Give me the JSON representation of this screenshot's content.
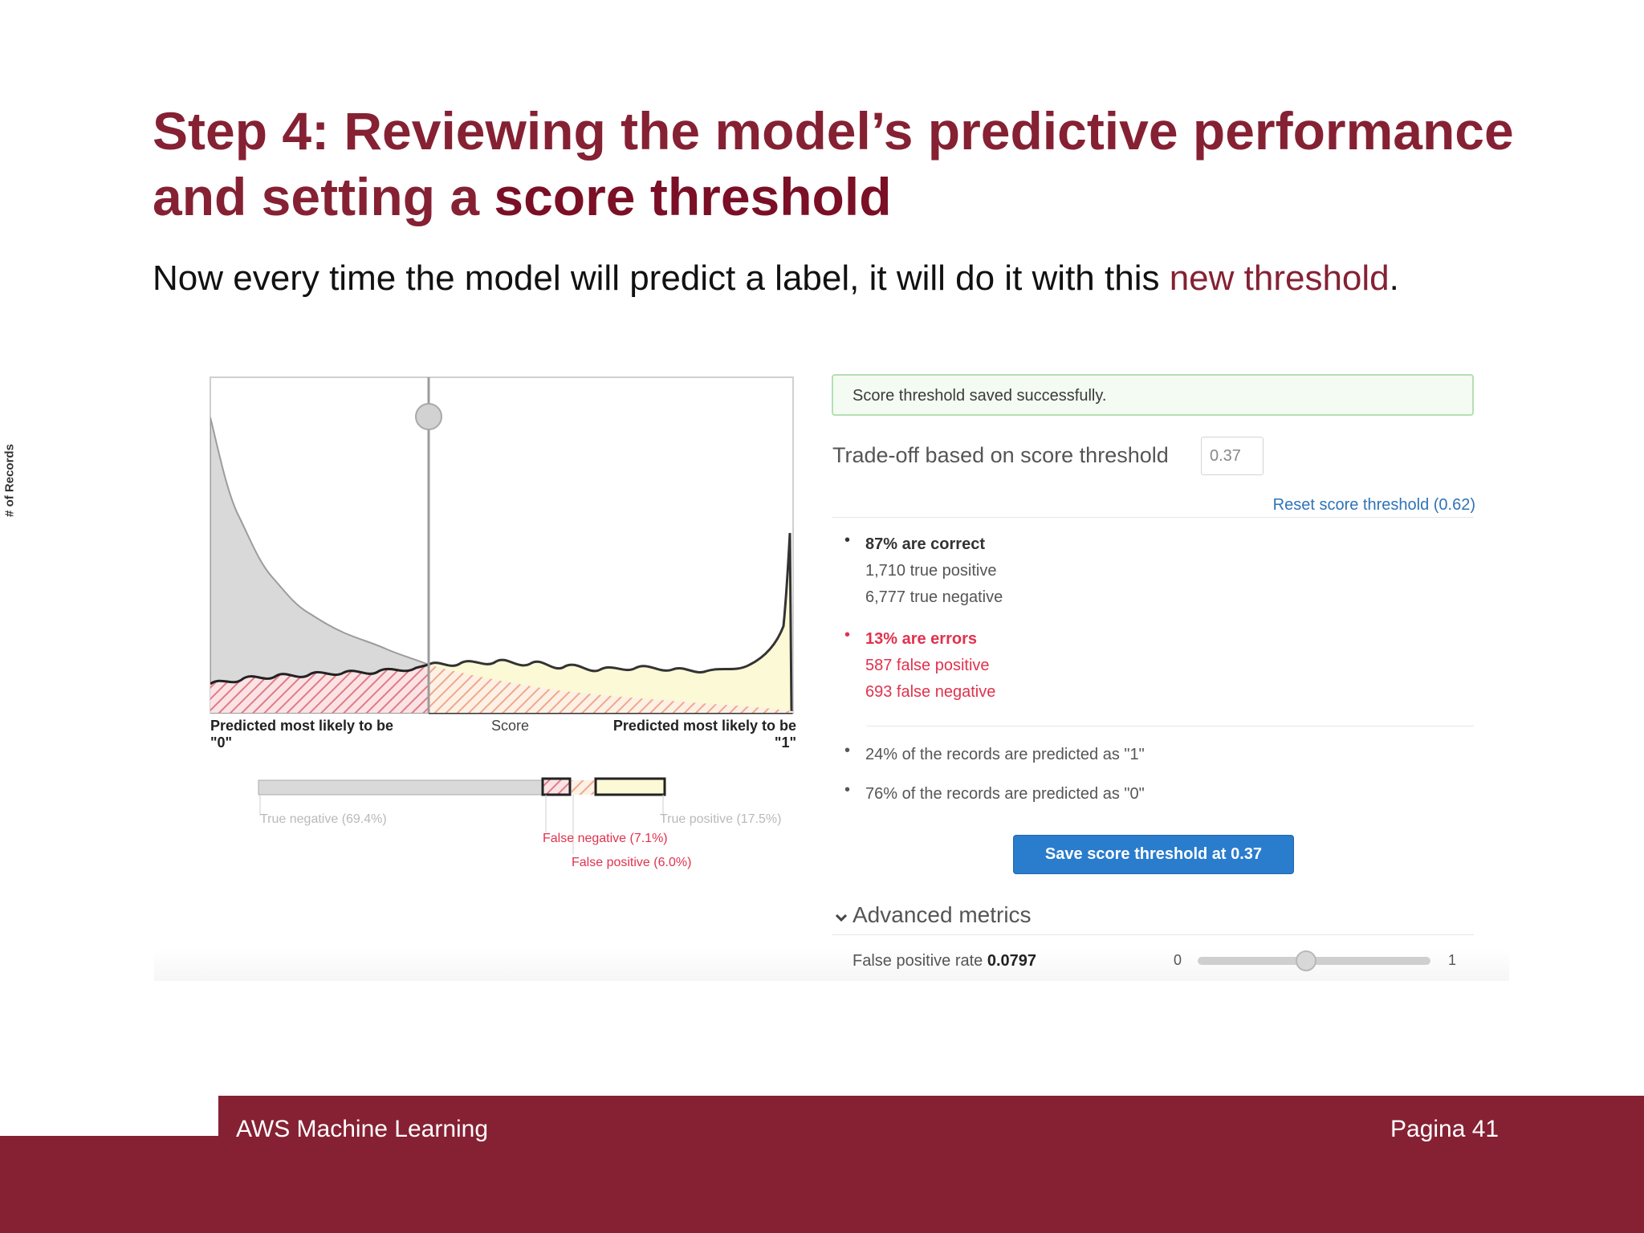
{
  "slide": {
    "title_line1": "Step 4: Reviewing the model’s predictive performance",
    "title_line2_pre": "and setting a ",
    "title_line2_strong": "score threshold",
    "subtitle_pre": "Now every time the model will predict a label, it will do it with this ",
    "subtitle_highlight": "new threshold",
    "subtitle_post": "."
  },
  "histogram": {
    "ylabel": "# of Records",
    "xlabel_left_line1": "Predicted most likely to be",
    "xlabel_left_line2": "\"0\"",
    "xlabel_center": "Score",
    "xlabel_right_line1": "Predicted most likely to be",
    "xlabel_right_line2": "\"1\"",
    "threshold": 0.37,
    "true_negative_label": "True negative (69.4%)",
    "true_positive_label": "True positive (17.5%)",
    "false_negative_label": "False negative (7.1%)",
    "false_positive_label": "False positive (6.0%)",
    "summary_bar": {
      "true_negative": 0.694,
      "false_negative": 0.071,
      "false_positive": 0.06,
      "true_positive": 0.175
    },
    "colors": {
      "negative_fill": "#d9d9d9",
      "positive_fill": "#fbf9d6",
      "false_negative_hatch": "#e07c86",
      "false_positive_hatch": "#f0a98a"
    }
  },
  "panel": {
    "alert_text": "Score threshold saved successfully.",
    "tradeoff_label": "Trade-off based on score threshold",
    "threshold_value": "0.37",
    "reset_link": "Reset score threshold (0.62)",
    "correct_header": "87% are correct",
    "correct_tp": "1,710 true positive",
    "correct_tn": "6,777 true negative",
    "errors_header": "13% are errors",
    "errors_fp": "587 false positive",
    "errors_fn": "693 false negative",
    "pred_1": "24% of the records are predicted as \"1\"",
    "pred_0": "76% of the records are predicted as \"0\"",
    "save_button": "Save score threshold at 0.37",
    "advanced_label": "Advanced metrics",
    "fpr_label": "False positive rate",
    "fpr_value": "0.0797",
    "slider_min": "0",
    "slider_max": "1",
    "slider_level": 0.5
  },
  "footer": {
    "left": "AWS Machine Learning",
    "right": "Pagina 41"
  }
}
